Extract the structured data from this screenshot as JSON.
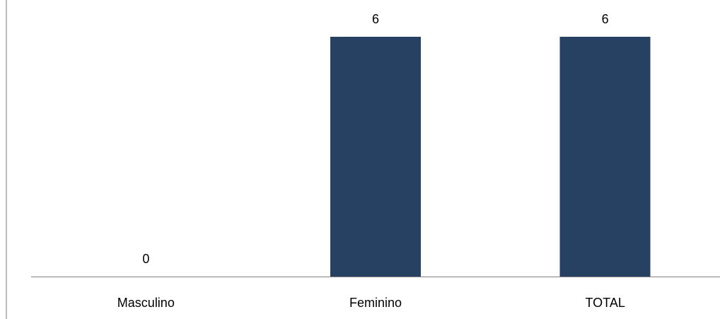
{
  "chart_data": {
    "type": "bar",
    "categories": [
      "Masculino",
      "Feminino",
      "TOTAL"
    ],
    "values": [
      0,
      6,
      6
    ],
    "data_labels": [
      "0",
      "6",
      "6"
    ],
    "title": "",
    "xlabel": "",
    "ylabel": "",
    "ylim": [
      0,
      6
    ],
    "grid": false,
    "legend": "none",
    "bar_color": "#264161"
  }
}
